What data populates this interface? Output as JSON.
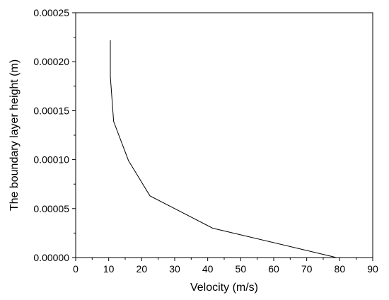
{
  "chart_data": {
    "type": "line",
    "xlabel": "Velocity (m/s)",
    "ylabel": "The boundary layer height (m)",
    "xlim": [
      0,
      90
    ],
    "ylim": [
      0,
      0.00025
    ],
    "x_ticks": [
      "0",
      "10",
      "20",
      "30",
      "40",
      "50",
      "60",
      "70",
      "80",
      "90"
    ],
    "y_ticks": [
      "0.00000",
      "0.00005",
      "0.00010",
      "0.00015",
      "0.00020",
      "0.00025"
    ],
    "grid": false,
    "legend": "none",
    "series": [
      {
        "x": [
          79,
          41.5,
          22.5,
          16,
          11.5,
          10.5,
          10.5
        ],
        "y": [
          0,
          3e-05,
          6.3e-05,
          9.9e-05,
          0.000139,
          0.000185,
          0.000222
        ],
        "color": "#000000"
      }
    ]
  }
}
